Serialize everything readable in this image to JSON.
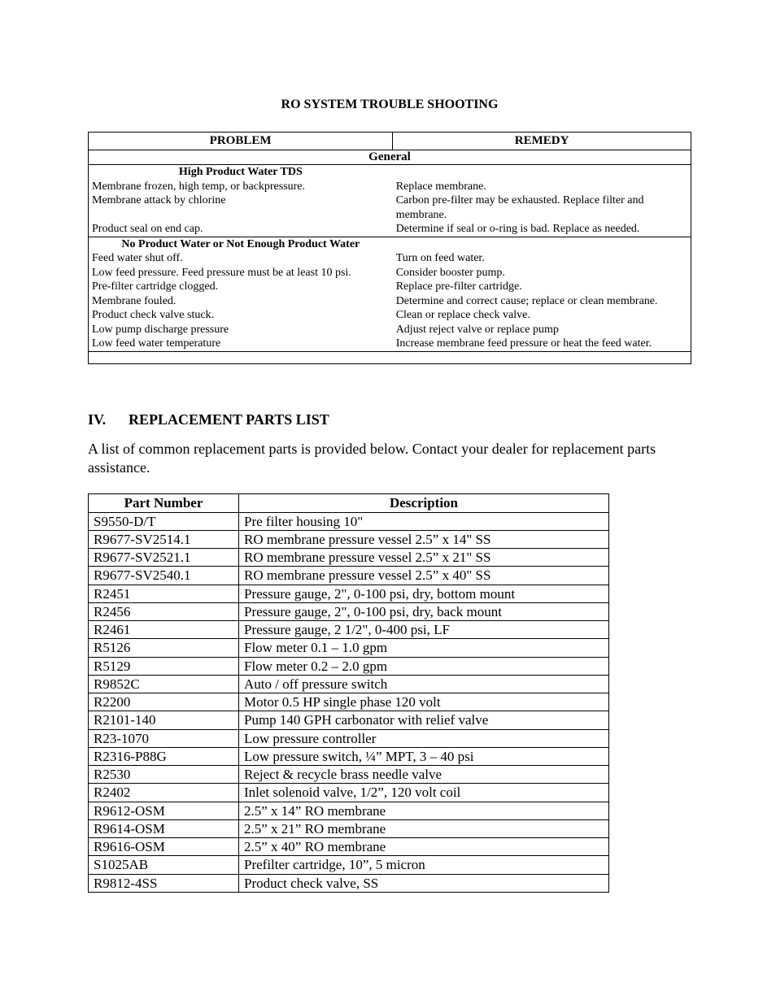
{
  "title": "RO SYSTEM TROUBLE SHOOTING",
  "trouble": {
    "headers": {
      "problem": "PROBLEM",
      "remedy": "REMEDY"
    },
    "sections": [
      {
        "title": "General",
        "groups": [
          {
            "subtitle": "High Product Water TDS",
            "rows": [
              {
                "problem": "Membrane frozen, high temp, or backpressure.",
                "remedy": "Replace membrane."
              },
              {
                "problem": "Membrane attack by chlorine",
                "remedy": "Carbon pre-filter may be exhausted. Replace filter and membrane."
              },
              {
                "problem": "Product seal on end cap.",
                "remedy": "Determine if seal or o-ring is bad. Replace as needed."
              }
            ]
          },
          {
            "subtitle": "No Product Water or Not Enough Product Water",
            "rows": [
              {
                "problem": "Feed water shut off.",
                "remedy": "Turn on feed water."
              },
              {
                "problem": "Low feed pressure. Feed pressure must be at least 10 psi.",
                "remedy": "Consider booster pump."
              },
              {
                "problem": "Pre-filter cartridge clogged.",
                "remedy": "Replace pre-filter cartridge."
              },
              {
                "problem": "Membrane fouled.",
                "remedy": "Determine and correct cause; replace or clean  membrane."
              },
              {
                "problem": "Product check valve stuck.",
                "remedy": "Clean or replace check valve."
              },
              {
                "problem": "Low pump discharge pressure",
                "remedy": "Adjust reject valve or replace pump"
              },
              {
                "problem": "Low feed water temperature",
                "remedy": "Increase membrane feed pressure or heat the feed water."
              }
            ]
          }
        ]
      }
    ]
  },
  "parts_section": {
    "number": "IV.",
    "title": "REPLACEMENT PARTS LIST",
    "intro": "A list of common replacement parts is provided below.  Contact your dealer for replacement parts assistance."
  },
  "parts_table": {
    "headers": {
      "part": "Part Number",
      "desc": "Description"
    },
    "rows": [
      {
        "part": "S9550-D/T",
        "desc": "Pre filter housing 10\""
      },
      {
        "part": "R9677-SV2514.1",
        "desc": "RO membrane pressure vessel 2.5” x 14\"  SS"
      },
      {
        "part": "R9677-SV2521.1",
        "desc": "RO membrane pressure vessel 2.5” x 21\"  SS"
      },
      {
        "part": "R9677-SV2540.1",
        "desc": "RO membrane pressure vessel 2.5” x 40\"  SS"
      },
      {
        "part": "R2451",
        "desc": "Pressure gauge, 2\", 0-100 psi, dry, bottom mount"
      },
      {
        "part": "R2456",
        "desc": "Pressure gauge, 2\", 0-100 psi, dry, back mount"
      },
      {
        "part": "R2461",
        "desc": "Pressure gauge, 2 1/2\", 0-400 psi, LF"
      },
      {
        "part": "R5126",
        "desc": "Flow meter 0.1 – 1.0 gpm"
      },
      {
        "part": "R5129",
        "desc": "Flow meter 0.2 – 2.0 gpm"
      },
      {
        "part": "R9852C",
        "desc": "Auto / off pressure switch"
      },
      {
        "part": "R2200",
        "desc": "Motor 0.5 HP single phase 120 volt"
      },
      {
        "part": "R2101-140",
        "desc": "Pump 140 GPH carbonator with relief valve"
      },
      {
        "part": "R23-1070",
        "desc": "Low pressure controller"
      },
      {
        "part": "R2316-P88G",
        "desc": "Low pressure switch, ¼” MPT, 3 – 40 psi"
      },
      {
        "part": "R2530",
        "desc": "Reject & recycle brass needle valve"
      },
      {
        "part": "R2402",
        "desc": "Inlet solenoid valve, 1/2”, 120 volt coil"
      },
      {
        "part": "R9612-OSM",
        "desc": "2.5” x 14” RO membrane"
      },
      {
        "part": "R9614-OSM",
        "desc": "2.5” x 21” RO membrane"
      },
      {
        "part": "R9616-OSM",
        "desc": "2.5” x 40” RO membrane"
      },
      {
        "part": "S1025AB",
        "desc": "Prefilter cartridge, 10”, 5 micron"
      },
      {
        "part": "R9812-4SS",
        "desc": "Product check valve, SS"
      }
    ]
  }
}
